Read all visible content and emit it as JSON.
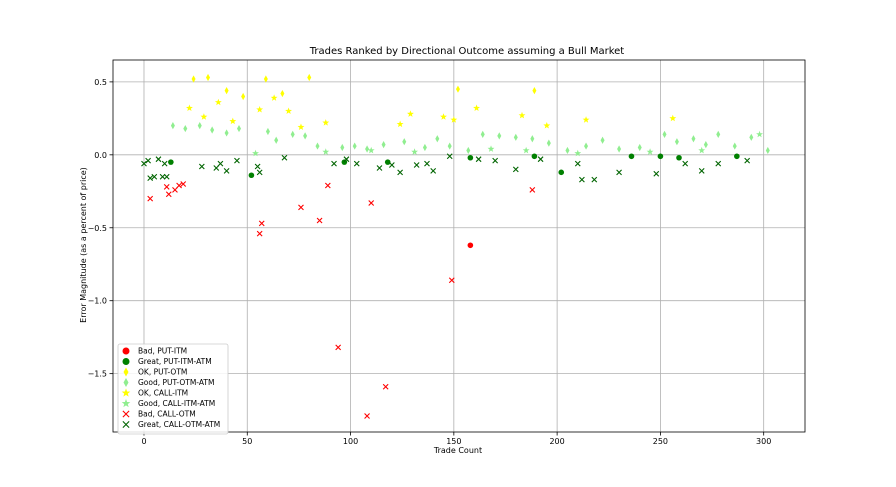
{
  "chart_data": {
    "type": "scatter",
    "title": "Trades Ranked by Directional Outcome assuming a Bull Market",
    "xlabel": "Trade Count",
    "ylabel": "Error Magnitude (as a percent of price)",
    "xlim": [
      -15,
      320
    ],
    "ylim": [
      -1.9,
      0.65
    ],
    "xticks": [
      0,
      50,
      100,
      150,
      200,
      250,
      300
    ],
    "yticks": [
      0.5,
      0.0,
      -0.5,
      -1.0,
      -1.5
    ],
    "ytick_labels": [
      "0.5",
      "0.0",
      "−0.5",
      "−1.0",
      "−1.5"
    ],
    "grid": true,
    "legend_position": "lower-left",
    "series": [
      {
        "name": "Bad, PUT-ITM",
        "marker": "circle",
        "color": "#ff0000",
        "points": [
          [
            158,
            -0.62
          ]
        ]
      },
      {
        "name": "Great, PUT-ITM-ATM",
        "marker": "circle",
        "color": "#008000",
        "points": [
          [
            13,
            -0.05
          ],
          [
            52,
            -0.14
          ],
          [
            97,
            -0.05
          ],
          [
            118,
            -0.05
          ],
          [
            158,
            -0.02
          ],
          [
            189,
            -0.01
          ],
          [
            202,
            -0.12
          ],
          [
            236,
            -0.01
          ],
          [
            250,
            -0.01
          ],
          [
            259,
            -0.02
          ],
          [
            287,
            -0.01
          ]
        ]
      },
      {
        "name": "OK, PUT-OTM",
        "marker": "thin-diamond",
        "color": "#ffff00",
        "points": [
          [
            24,
            0.52
          ],
          [
            31,
            0.53
          ],
          [
            40,
            0.44
          ],
          [
            48,
            0.4
          ],
          [
            59,
            0.52
          ],
          [
            67,
            0.42
          ],
          [
            80,
            0.53
          ],
          [
            152,
            0.45
          ],
          [
            189,
            0.44
          ]
        ]
      },
      {
        "name": "Good, PUT-OTM-ATM",
        "marker": "thin-diamond",
        "color": "#90ee90",
        "points": [
          [
            14,
            0.2
          ],
          [
            20,
            0.18
          ],
          [
            27,
            0.2
          ],
          [
            33,
            0.17
          ],
          [
            40,
            0.15
          ],
          [
            46,
            0.18
          ],
          [
            60,
            0.16
          ],
          [
            64,
            0.1
          ],
          [
            72,
            0.14
          ],
          [
            78,
            0.13
          ],
          [
            84,
            0.06
          ],
          [
            96,
            0.05
          ],
          [
            102,
            0.06
          ],
          [
            108,
            0.04
          ],
          [
            116,
            0.07
          ],
          [
            126,
            0.09
          ],
          [
            136,
            0.05
          ],
          [
            142,
            0.11
          ],
          [
            148,
            0.06
          ],
          [
            157,
            0.03
          ],
          [
            164,
            0.14
          ],
          [
            172,
            0.13
          ],
          [
            180,
            0.12
          ],
          [
            188,
            0.11
          ],
          [
            196,
            0.08
          ],
          [
            205,
            0.03
          ],
          [
            214,
            0.06
          ],
          [
            222,
            0.1
          ],
          [
            230,
            0.04
          ],
          [
            240,
            0.05
          ],
          [
            252,
            0.14
          ],
          [
            258,
            0.09
          ],
          [
            266,
            0.11
          ],
          [
            272,
            0.07
          ],
          [
            278,
            0.14
          ],
          [
            286,
            0.06
          ],
          [
            294,
            0.12
          ],
          [
            302,
            0.03
          ]
        ]
      },
      {
        "name": "OK, CALL-ITM",
        "marker": "star",
        "color": "#ffff00",
        "points": [
          [
            22,
            0.32
          ],
          [
            29,
            0.26
          ],
          [
            36,
            0.36
          ],
          [
            43,
            0.23
          ],
          [
            56,
            0.31
          ],
          [
            63,
            0.39
          ],
          [
            70,
            0.3
          ],
          [
            76,
            0.19
          ],
          [
            88,
            0.22
          ],
          [
            124,
            0.21
          ],
          [
            129,
            0.28
          ],
          [
            145,
            0.26
          ],
          [
            150,
            0.24
          ],
          [
            161,
            0.32
          ],
          [
            183,
            0.27
          ],
          [
            195,
            0.2
          ],
          [
            214,
            0.24
          ],
          [
            256,
            0.25
          ]
        ]
      },
      {
        "name": "Good, CALL-ITM-ATM",
        "marker": "star",
        "color": "#90ee90",
        "points": [
          [
            54,
            0.01
          ],
          [
            88,
            0.02
          ],
          [
            110,
            0.03
          ],
          [
            131,
            0.02
          ],
          [
            168,
            0.04
          ],
          [
            185,
            0.03
          ],
          [
            210,
            0.01
          ],
          [
            245,
            0.02
          ],
          [
            270,
            0.03
          ],
          [
            298,
            0.14
          ]
        ]
      },
      {
        "name": "Bad, CALL-OTM",
        "marker": "x",
        "color": "#ff0000",
        "points": [
          [
            3,
            -0.3
          ],
          [
            11,
            -0.22
          ],
          [
            12,
            -0.27
          ],
          [
            15,
            -0.24
          ],
          [
            17,
            -0.21
          ],
          [
            19,
            -0.2
          ],
          [
            56,
            -0.54
          ],
          [
            57,
            -0.47
          ],
          [
            76,
            -0.36
          ],
          [
            85,
            -0.45
          ],
          [
            89,
            -0.21
          ],
          [
            94,
            -1.32
          ],
          [
            108,
            -1.79
          ],
          [
            110,
            -0.33
          ],
          [
            117,
            -1.59
          ],
          [
            149,
            -0.86
          ],
          [
            188,
            -0.24
          ]
        ]
      },
      {
        "name": "Great, CALL-OTM-ATM",
        "marker": "x",
        "color": "#006400",
        "points": [
          [
            0,
            -0.06
          ],
          [
            2,
            -0.04
          ],
          [
            3,
            -0.16
          ],
          [
            5,
            -0.15
          ],
          [
            7,
            -0.03
          ],
          [
            9,
            -0.15
          ],
          [
            10,
            -0.06
          ],
          [
            11,
            -0.15
          ],
          [
            28,
            -0.08
          ],
          [
            35,
            -0.09
          ],
          [
            37,
            -0.06
          ],
          [
            40,
            -0.11
          ],
          [
            45,
            -0.04
          ],
          [
            55,
            -0.08
          ],
          [
            56,
            -0.12
          ],
          [
            68,
            -0.02
          ],
          [
            92,
            -0.06
          ],
          [
            98,
            -0.03
          ],
          [
            103,
            -0.06
          ],
          [
            114,
            -0.09
          ],
          [
            120,
            -0.07
          ],
          [
            124,
            -0.12
          ],
          [
            132,
            -0.07
          ],
          [
            137,
            -0.06
          ],
          [
            140,
            -0.11
          ],
          [
            148,
            -0.01
          ],
          [
            162,
            -0.03
          ],
          [
            170,
            -0.04
          ],
          [
            180,
            -0.1
          ],
          [
            192,
            -0.03
          ],
          [
            210,
            -0.06
          ],
          [
            212,
            -0.17
          ],
          [
            218,
            -0.17
          ],
          [
            230,
            -0.12
          ],
          [
            248,
            -0.13
          ],
          [
            262,
            -0.06
          ],
          [
            270,
            -0.11
          ],
          [
            278,
            -0.06
          ],
          [
            292,
            -0.04
          ]
        ]
      }
    ]
  }
}
